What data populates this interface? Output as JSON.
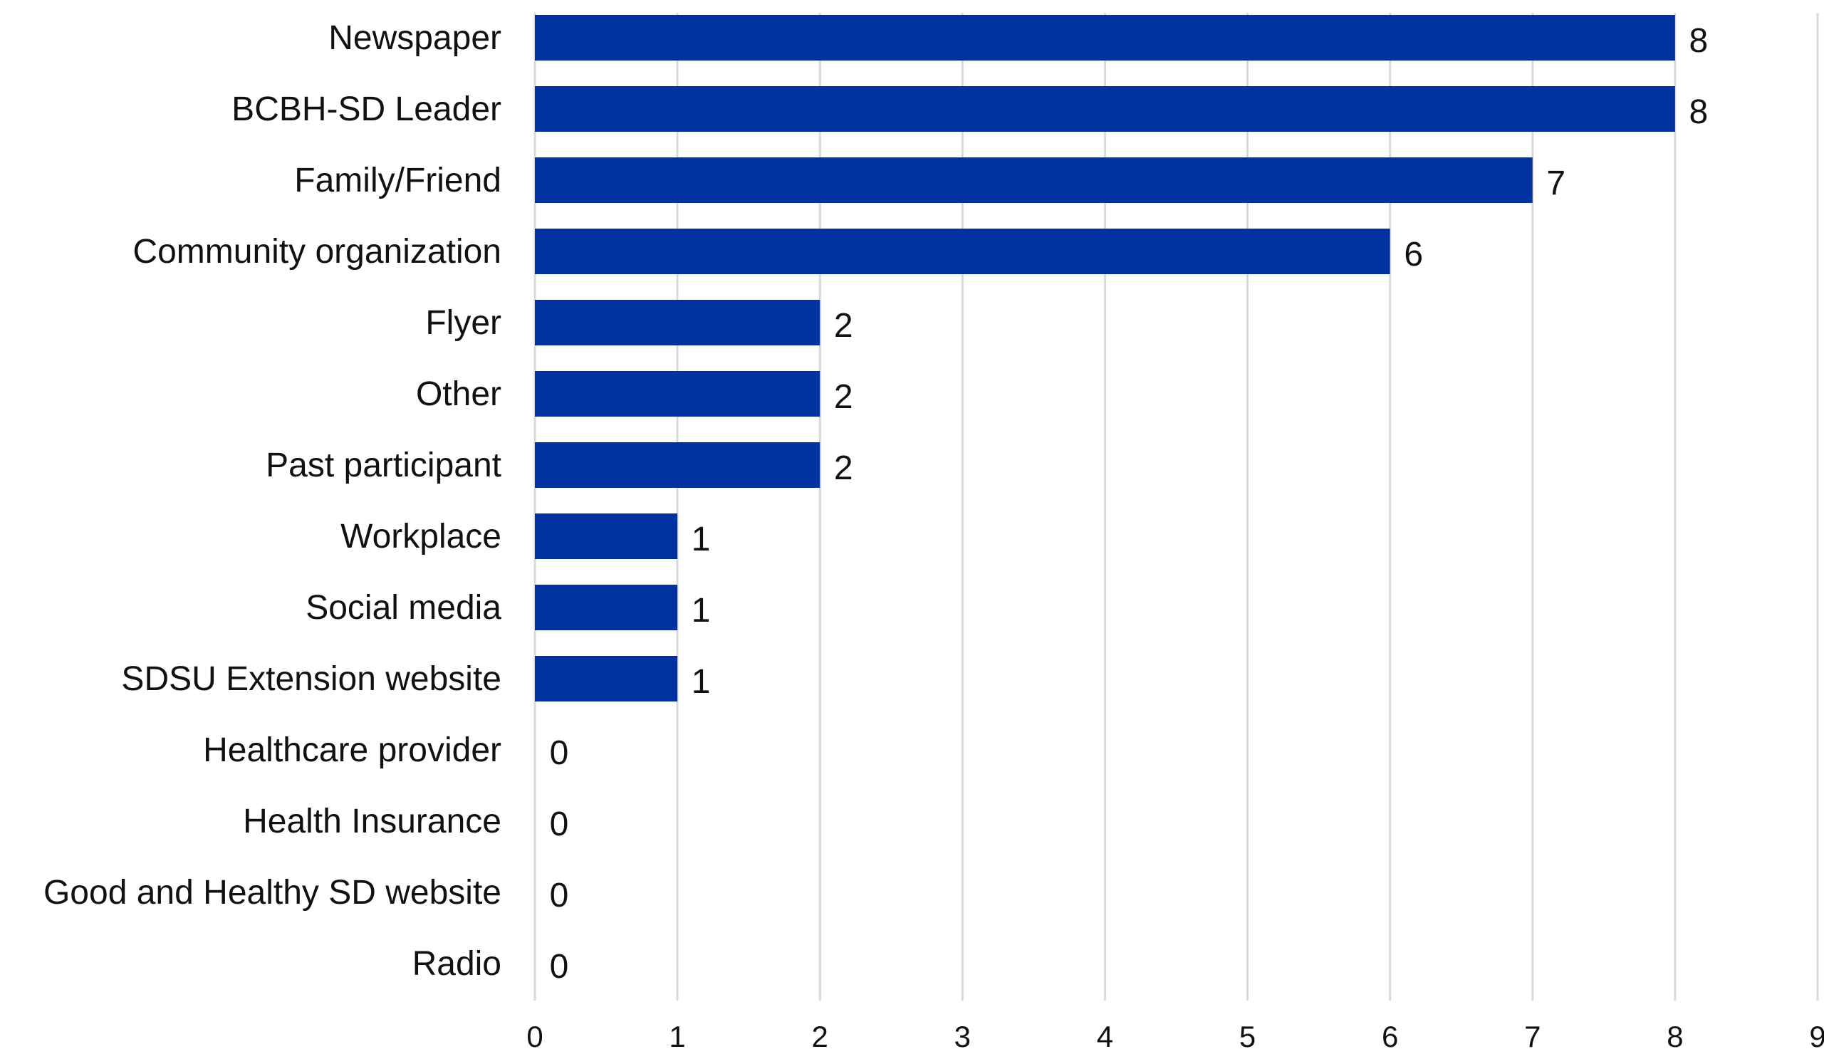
{
  "chart_data": {
    "type": "bar",
    "orientation": "horizontal",
    "title": "",
    "xlabel": "",
    "ylabel": "",
    "categories": [
      "Newspaper",
      "BCBH-SD Leader",
      "Family/Friend",
      "Community organization",
      "Flyer",
      "Other",
      "Past participant",
      "Workplace",
      "Social media",
      "SDSU Extension website",
      "Healthcare provider",
      "Health Insurance",
      "Good and Healthy SD website",
      "Radio"
    ],
    "values": [
      8,
      8,
      7,
      6,
      2,
      2,
      2,
      1,
      1,
      1,
      0,
      0,
      0,
      0
    ],
    "data_labels": [
      "8",
      "8",
      "7",
      "6",
      "2",
      "2",
      "2",
      "1",
      "1",
      "1",
      "0",
      "0",
      "0",
      "0"
    ],
    "xlim": [
      0,
      9
    ],
    "x_ticks": [
      "0",
      "1",
      "2",
      "3",
      "4",
      "5",
      "6",
      "7",
      "8",
      "9"
    ],
    "grid": "vertical",
    "legend": "none",
    "bar_color": "#0033a0",
    "grid_color": "#d9d9d9"
  }
}
